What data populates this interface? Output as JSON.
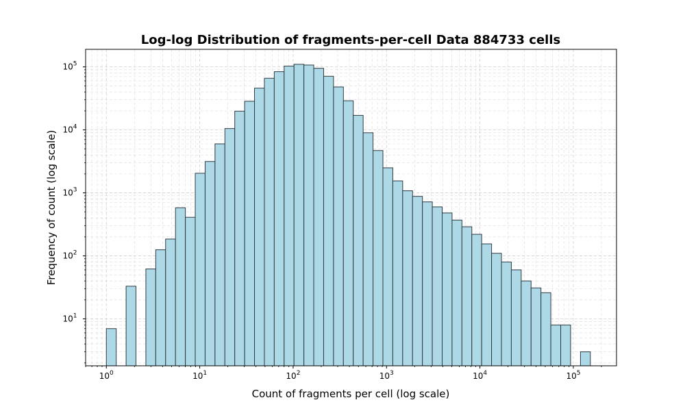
{
  "chart_data": {
    "type": "bar",
    "title": "Log-log Distribution of fragments-per-cell Data 884733 cells",
    "xlabel": "Count of fragments per cell (log scale)",
    "ylabel": "Frequency of count (log scale)",
    "x_scale": "log",
    "y_scale": "log",
    "xlim": [
      0.6,
      290000
    ],
    "ylim": [
      1.8,
      190000
    ],
    "grid": true,
    "x_ticks": [
      {
        "base": "10",
        "exp": "0",
        "value": 1
      },
      {
        "base": "10",
        "exp": "1",
        "value": 10
      },
      {
        "base": "10",
        "exp": "2",
        "value": 100
      },
      {
        "base": "10",
        "exp": "3",
        "value": 1000
      },
      {
        "base": "10",
        "exp": "4",
        "value": 10000
      },
      {
        "base": "10",
        "exp": "5",
        "value": 100000
      }
    ],
    "y_ticks": [
      {
        "base": "10",
        "exp": "1",
        "value": 10
      },
      {
        "base": "10",
        "exp": "2",
        "value": 100
      },
      {
        "base": "10",
        "exp": "3",
        "value": 1000
      },
      {
        "base": "10",
        "exp": "4",
        "value": 10000
      },
      {
        "base": "10",
        "exp": "5",
        "value": 100000
      }
    ],
    "bin_edges": [
      1.0,
      1.276,
      1.628,
      2.077,
      2.65,
      3.38,
      4.31,
      5.5,
      7.02,
      8.95,
      11.42,
      14.57,
      18.59,
      23.71,
      30.25,
      38.59,
      49.23,
      62.8,
      80.1,
      102.2,
      130.4,
      166.3,
      212.2,
      270.7,
      345.3,
      440.5,
      562.0,
      717.0,
      914.7,
      1166.9,
      1488.7,
      1899.2,
      2422.8,
      3090.9,
      3943.2,
      5030.5,
      6417.6,
      8187.2,
      10444.8,
      13324.8,
      16999.0,
      21686.1,
      27665.7,
      35294.0,
      45026.0,
      57441.6,
      73280.6,
      93486.9,
      119264.7,
      152149.0
    ],
    "counts": [
      7,
      0,
      33,
      0,
      62,
      125,
      185,
      580,
      410,
      2050,
      3150,
      6000,
      10500,
      19800,
      28500,
      46000,
      66000,
      84000,
      103000,
      110000,
      107000,
      95000,
      71000,
      48000,
      29000,
      17000,
      9000,
      4700,
      2500,
      1550,
      1080,
      880,
      720,
      600,
      480,
      370,
      290,
      220,
      155,
      110,
      80,
      60,
      40,
      31,
      26,
      8,
      8,
      0,
      3
    ]
  }
}
